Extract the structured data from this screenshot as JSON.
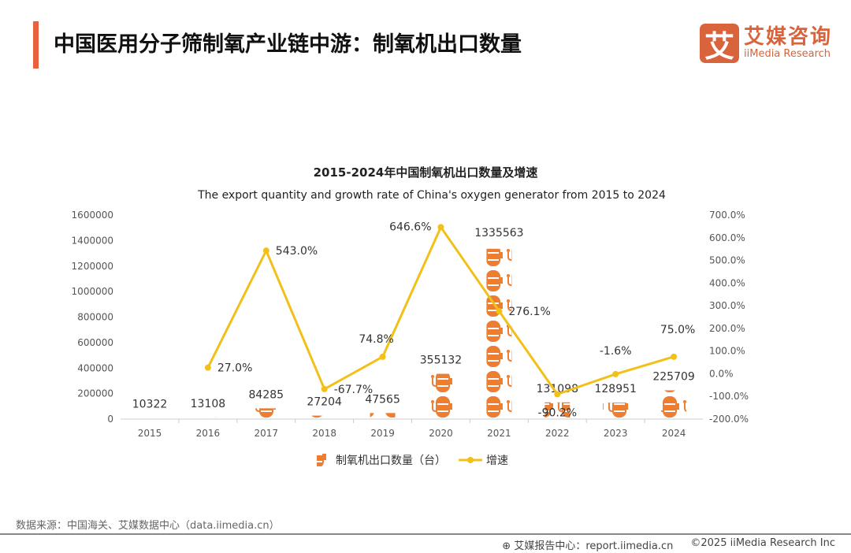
{
  "header": {
    "title": "中国医用分子筛制氧产业链中游：制氧机出口数量"
  },
  "logo": {
    "icon_char": "艾",
    "cn": "艾媒咨询",
    "en": "iiMedia Research"
  },
  "chart_data": {
    "type": "bar+line",
    "title": "2015-2024年中国制氧机出口数量及增速",
    "subtitle": "The export quantity and growth rate of China's oxygen generator from 2015 to 2024",
    "categories": [
      "2015",
      "2016",
      "2017",
      "2018",
      "2019",
      "2020",
      "2021",
      "2022",
      "2023",
      "2024"
    ],
    "series": [
      {
        "name": "制氧机出口数量（台）",
        "type": "pictograph-bar",
        "axis": "left",
        "color": "#ed7d31",
        "values": [
          10322,
          13108,
          84285,
          27204,
          47565,
          355132,
          1335563,
          131098,
          128951,
          225709
        ],
        "labels": [
          "10322",
          "13108",
          "84285",
          "27204",
          "47565",
          "355132",
          "1335563",
          "131098",
          "128951",
          "225709"
        ]
      },
      {
        "name": "增速",
        "type": "line",
        "axis": "right",
        "color": "#f2c018",
        "values": [
          null,
          27.0,
          543.0,
          -67.7,
          74.8,
          646.6,
          276.1,
          -90.2,
          -1.6,
          75.0
        ],
        "labels": [
          "",
          "27.0%",
          "543.0%",
          "-67.7%",
          "74.8%",
          "646.6%",
          "276.1%",
          "-90.2%",
          "-1.6%",
          "75.0%"
        ]
      }
    ],
    "y_left": {
      "ylim": [
        0,
        1600000
      ],
      "ticks": [
        "0",
        "200000",
        "400000",
        "600000",
        "800000",
        "1000000",
        "1200000",
        "1400000",
        "1600000"
      ]
    },
    "y_right": {
      "ylim": [
        -200,
        700
      ],
      "ticks": [
        "-200.0%",
        "-100.0%",
        "0.0%",
        "100.0%",
        "200.0%",
        "300.0%",
        "400.0%",
        "500.0%",
        "600.0%",
        "700.0%"
      ]
    },
    "legend": "bottom",
    "grid": false
  },
  "footer": {
    "source": "数据来源：中国海关、艾媒数据中心（data.iimedia.cn）",
    "report": "艾媒报告中心：report.iimedia.cn",
    "copyright": "©2025  iiMedia Research  Inc"
  }
}
